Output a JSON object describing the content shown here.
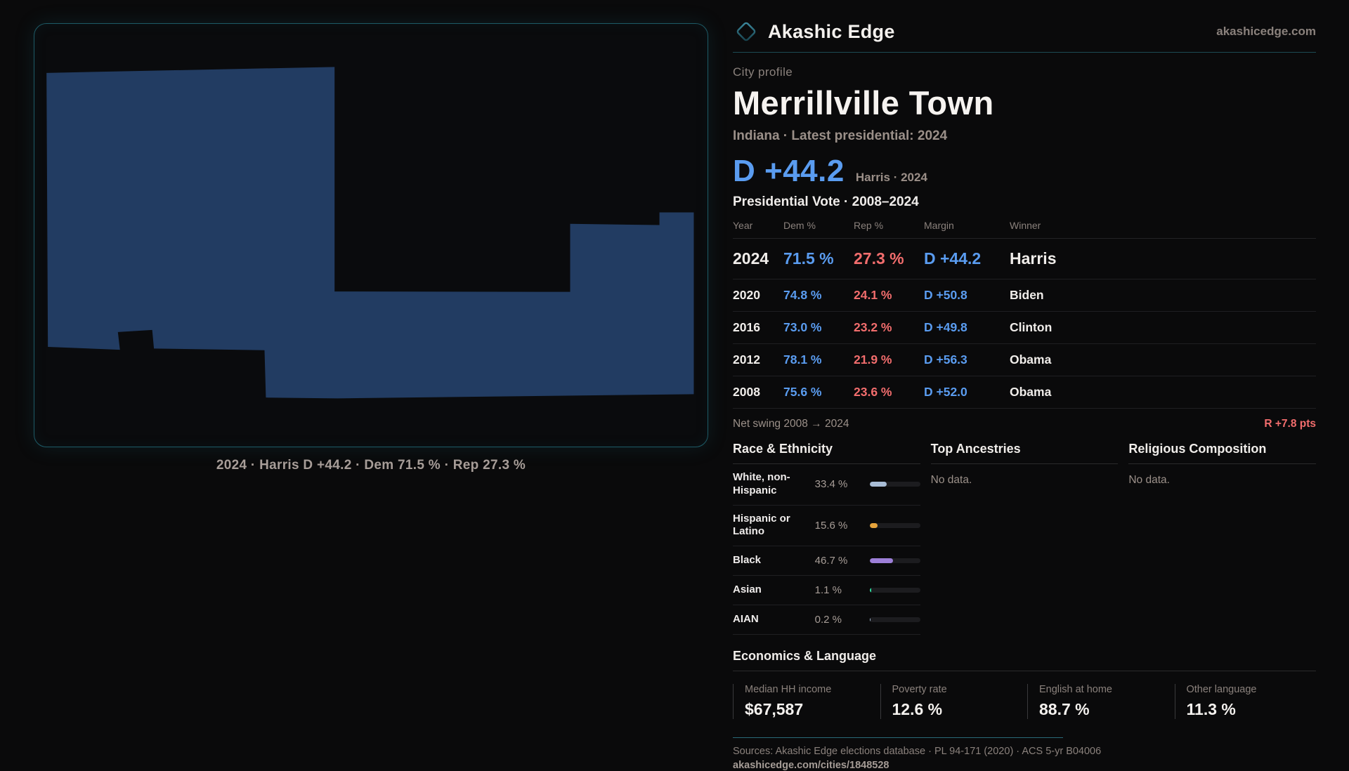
{
  "brand": {
    "name": "Akashic Edge",
    "domain": "akashicedge.com",
    "accent_teal": "#2a6a78",
    "accent_blue": "#5a9cf0",
    "accent_red": "#f26d6d"
  },
  "map": {
    "caption": "2024 · Harris D +44.2 · Dem 71.5 % · Rep 27.3 %",
    "fill_color": "#223c62",
    "border_color": "#1d5a66"
  },
  "profile": {
    "kicker": "City profile",
    "title": "Merrillville Town",
    "subtitle": "Indiana · Latest presidential: 2024",
    "headline_margin": "D +44.2",
    "headline_note": "Harris · 2024",
    "table_title": "Presidential Vote · 2008–2024"
  },
  "elections": {
    "columns": [
      "Year",
      "Dem %",
      "Rep %",
      "Margin",
      "Winner"
    ],
    "rows": [
      {
        "year": "2024",
        "dem": "71.5 %",
        "rep": "27.3 %",
        "margin": "D +44.2",
        "winner": "Harris"
      },
      {
        "year": "2020",
        "dem": "74.8 %",
        "rep": "24.1 %",
        "margin": "D +50.8",
        "winner": "Biden"
      },
      {
        "year": "2016",
        "dem": "73.0 %",
        "rep": "23.2 %",
        "margin": "D +49.8",
        "winner": "Clinton"
      },
      {
        "year": "2012",
        "dem": "78.1 %",
        "rep": "21.9 %",
        "margin": "D +56.3",
        "winner": "Obama"
      },
      {
        "year": "2008",
        "dem": "75.6 %",
        "rep": "23.6 %",
        "margin": "D +52.0",
        "winner": "Obama"
      }
    ],
    "net_swing_label": "Net swing 2008 → 2024",
    "net_swing_value": "R +7.8 pts"
  },
  "race": {
    "title": "Race & Ethnicity",
    "rows": [
      {
        "label": "White, non-Hispanic",
        "value": "33.4 %",
        "pct": 33.4,
        "color": "#a9bdd6"
      },
      {
        "label": "Hispanic or Latino",
        "value": "15.6 %",
        "pct": 15.6,
        "color": "#e5a33c"
      },
      {
        "label": "Black",
        "value": "46.7 %",
        "pct": 46.7,
        "color": "#9d7fd8"
      },
      {
        "label": "Asian",
        "value": "1.1 %",
        "pct": 1.1,
        "color": "#2fe0a0"
      },
      {
        "label": "AIAN",
        "value": "0.2 %",
        "pct": 0.2,
        "color": "#a9bdd6"
      }
    ]
  },
  "ancestries": {
    "title": "Top Ancestries",
    "empty": "No data."
  },
  "religion": {
    "title": "Religious Composition",
    "empty": "No data."
  },
  "economics": {
    "title": "Economics & Language",
    "stats": [
      {
        "label": "Median HH income",
        "value": "$67,587"
      },
      {
        "label": "Poverty rate",
        "value": "12.6 %"
      },
      {
        "label": "English at home",
        "value": "88.7 %"
      },
      {
        "label": "Other language",
        "value": "11.3 %"
      }
    ]
  },
  "footer": {
    "sources": "Sources: Akashic Edge elections database · PL 94-171 (2020) · ACS 5-yr B04006",
    "permalink": "akashicedge.com/cities/1848528"
  }
}
